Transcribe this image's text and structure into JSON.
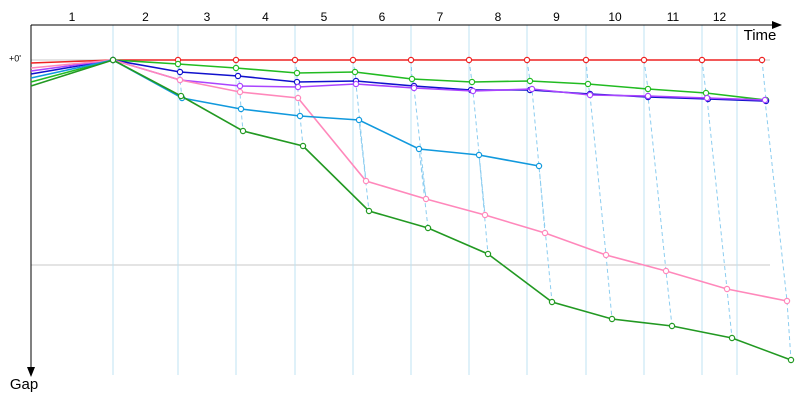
{
  "chart_data": {
    "type": "line",
    "x_label": "Time",
    "y_label": "Gap",
    "categories": [
      "1",
      "2",
      "3",
      "4",
      "5",
      "6",
      "7",
      "8",
      "9",
      "10",
      "11",
      "12"
    ],
    "lap_ends": [
      82,
      147,
      205,
      264,
      322,
      380,
      438,
      496,
      555,
      613,
      671,
      706
    ],
    "xlim": [
      0,
      769
    ],
    "ylim": [
      -35,
      315
    ],
    "yticks": [
      {
        "value": 0,
        "label": "+0'"
      },
      {
        "value": 205,
        "label": null
      }
    ],
    "grid": true,
    "series": [
      {
        "color": "#ee2222",
        "x": [
          0,
          82,
          147,
          205,
          264,
          322,
          380,
          438,
          496,
          555,
          613,
          671,
          731
        ],
        "values": [
          3,
          0,
          0,
          0,
          0,
          0,
          0,
          0,
          0,
          0,
          0,
          0,
          0
        ]
      },
      {
        "color": "#22bb22",
        "x": [
          0,
          82,
          147,
          205,
          266,
          324,
          381,
          441,
          499,
          557,
          617,
          675,
          735
        ],
        "values": [
          22,
          0,
          4,
          8,
          13,
          12,
          19,
          22,
          21,
          24,
          29,
          33,
          40
        ]
      },
      {
        "color": "#1111cc",
        "x": [
          0,
          82,
          149,
          207,
          266,
          325,
          383,
          440,
          499,
          559,
          617,
          677,
          735
        ],
        "values": [
          14,
          0,
          12,
          16,
          22,
          21,
          26,
          30,
          30,
          34,
          37,
          39,
          41
        ]
      },
      {
        "color": "#aa44ff",
        "x": [
          0,
          82,
          149,
          209,
          267,
          325,
          383,
          442,
          501,
          559,
          617,
          676,
          734
        ],
        "values": [
          11,
          0,
          20,
          26,
          27,
          24,
          28,
          31,
          29,
          35,
          36,
          38,
          40
        ]
      },
      {
        "color": "#ff88bb",
        "x": [
          0,
          82,
          149,
          209,
          267,
          335,
          395,
          454,
          514,
          575,
          635,
          696,
          756
        ],
        "values": [
          8,
          0,
          20,
          32,
          38,
          121,
          139,
          155,
          173,
          195,
          211,
          229,
          241
        ]
      },
      {
        "color": "#1199dd",
        "x": [
          0,
          82,
          151,
          210,
          269,
          328,
          388,
          448,
          508
        ],
        "values": [
          18,
          0,
          38,
          49,
          56,
          60,
          89,
          95,
          106
        ]
      },
      {
        "color": "#229922",
        "x": [
          0,
          82,
          150,
          212,
          272,
          338,
          397,
          457,
          521,
          581,
          641,
          701,
          760
        ],
        "values": [
          26,
          0,
          36,
          71,
          86,
          151,
          168,
          194,
          242,
          259,
          266,
          278,
          300
        ]
      }
    ]
  }
}
